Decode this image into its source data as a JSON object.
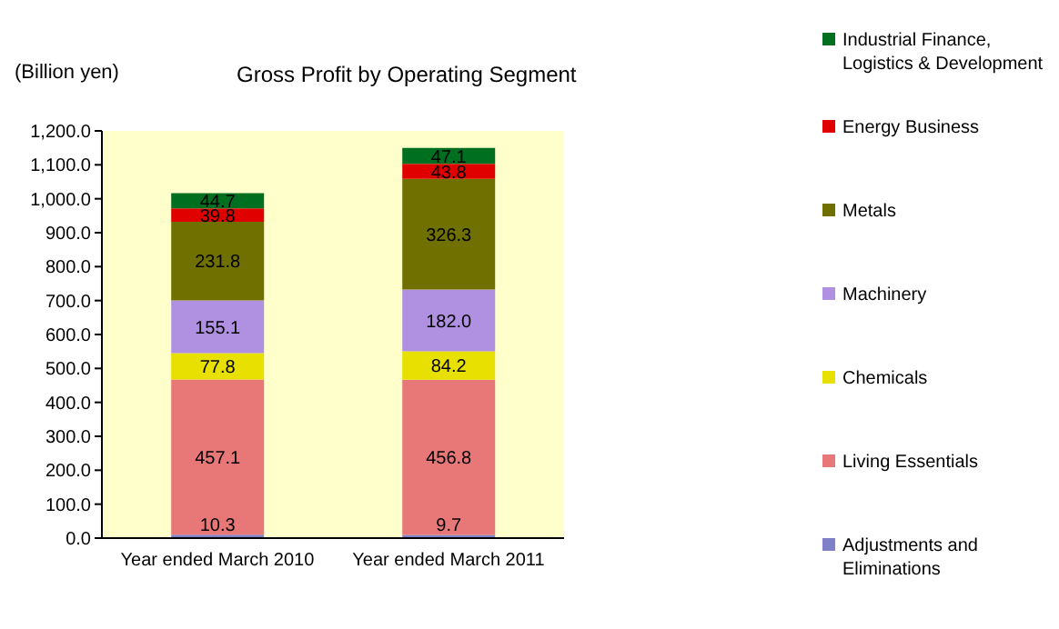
{
  "chart_data": {
    "type": "bar",
    "title": "Gross Profit by Operating Segment",
    "ylabel": "(Billion yen)",
    "categories": [
      "Year ended March 2010",
      "Year ended March 2011"
    ],
    "stacked": true,
    "legend": "right",
    "grid": false,
    "series": [
      {
        "name": "Adjustments and Eliminations",
        "color": "#8080c8",
        "values": [
          10.3,
          9.7
        ],
        "value_labels": [
          "10.3",
          "9.7"
        ]
      },
      {
        "name": "Living Essentials",
        "color": "#e87878",
        "values": [
          457.1,
          456.8
        ],
        "value_labels": [
          "457.1",
          "456.8"
        ]
      },
      {
        "name": "Chemicals",
        "color": "#e8e000",
        "values": [
          77.8,
          84.2
        ],
        "value_labels": [
          "77.8",
          "84.2"
        ]
      },
      {
        "name": "Machinery",
        "color": "#b090e0",
        "values": [
          155.1,
          182.0
        ],
        "value_labels": [
          "155.1",
          "182.0"
        ]
      },
      {
        "name": "Metals",
        "color": "#707000",
        "values": [
          231.8,
          326.3
        ],
        "value_labels": [
          "231.8",
          "326.3"
        ]
      },
      {
        "name": "Energy Business",
        "color": "#e00000",
        "values": [
          39.8,
          43.8
        ],
        "value_labels": [
          "39.8",
          "43.8"
        ]
      },
      {
        "name": "Industrial Finance, Logistics & Development",
        "color": "#007020",
        "values": [
          44.7,
          47.1
        ],
        "value_labels": [
          "44.7",
          "47.1"
        ]
      }
    ],
    "ylim": [
      0,
      1200
    ],
    "yticks": [
      {
        "value": 0,
        "label": "0.0"
      },
      {
        "value": 100,
        "label": "100.0"
      },
      {
        "value": 200,
        "label": "200.0"
      },
      {
        "value": 300,
        "label": "300.0"
      },
      {
        "value": 400,
        "label": "400.0"
      },
      {
        "value": 500,
        "label": "500.0"
      },
      {
        "value": 600,
        "label": "600.0"
      },
      {
        "value": 700,
        "label": "700.0"
      },
      {
        "value": 800,
        "label": "800.0"
      },
      {
        "value": 900,
        "label": "900.0"
      },
      {
        "value": 1000,
        "label": "1,000.0"
      },
      {
        "value": 1100,
        "label": "1,100.0"
      },
      {
        "value": 1200,
        "label": "1,200.0"
      }
    ]
  }
}
